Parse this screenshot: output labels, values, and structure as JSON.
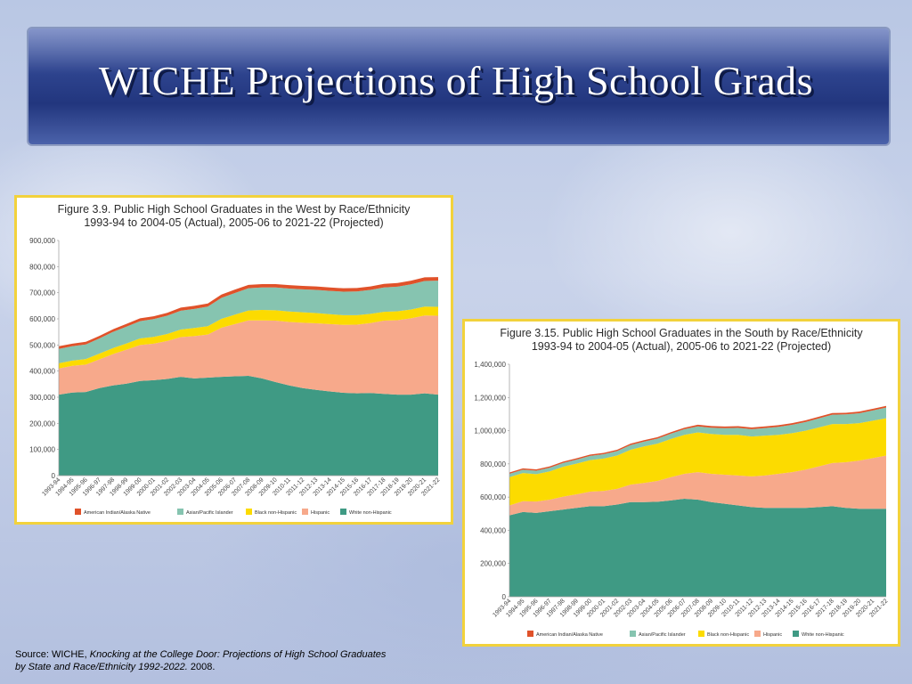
{
  "page": {
    "title": "WICHE Projections of High School Grads",
    "source_prefix": "Source: WICHE, ",
    "source_title": "Knocking at the College Door: Projections of High School Graduates by State and Race/Ethnicity 1992-2022.",
    "source_suffix": " 2008."
  },
  "colors": {
    "american_indian": "#e0522a",
    "asian": "#86c4b0",
    "black": "#fcdb00",
    "hispanic": "#f7a98b",
    "white": "#3f9a84"
  },
  "legend": [
    {
      "key": "american_indian",
      "label": "American Indian/Alaska Native"
    },
    {
      "key": "asian",
      "label": "Asian/Pacific Islander"
    },
    {
      "key": "black",
      "label": "Black non-Hispanic"
    },
    {
      "key": "hispanic",
      "label": "Hispanic"
    },
    {
      "key": "white",
      "label": "White non-Hispanic"
    }
  ],
  "chart_data": [
    {
      "type": "area",
      "title_line1": "Figure 3.9.  Public High School Graduates in the West by Race/Ethnicity",
      "title_line2": "1993-94 to 2004-05 (Actual), 2005-06 to 2021-22 (Projected)",
      "stacked": true,
      "ylim": [
        0,
        900000
      ],
      "yticks": [
        "0",
        "100,000",
        "200,000",
        "300,000",
        "400,000",
        "500,000",
        "600,000",
        "700,000",
        "800,000",
        "900,000"
      ],
      "categories": [
        "1993-94",
        "1994-95",
        "1995-96",
        "1996-97",
        "1997-98",
        "1998-99",
        "1999-00",
        "2000-01",
        "2001-02",
        "2002-03",
        "2003-04",
        "2004-05",
        "2005-06",
        "2006-07",
        "2007-08",
        "2008-09",
        "2009-10",
        "2010-11",
        "2011-12",
        "2012-13",
        "2013-14",
        "2014-15",
        "2015-16",
        "2016-17",
        "2017-18",
        "2018-19",
        "2019-20",
        "2020-21",
        "2021-22"
      ],
      "series": [
        {
          "name": "White non-Hispanic",
          "key": "white",
          "values": [
            310000,
            318000,
            320000,
            335000,
            345000,
            352000,
            362000,
            365000,
            370000,
            378000,
            372000,
            375000,
            378000,
            380000,
            382000,
            372000,
            358000,
            345000,
            335000,
            328000,
            322000,
            317000,
            315000,
            316000,
            313000,
            310000,
            310000,
            315000,
            310000
          ]
        },
        {
          "name": "Hispanic",
          "key": "hispanic",
          "values": [
            100000,
            102000,
            105000,
            110000,
            120000,
            130000,
            138000,
            140000,
            145000,
            152000,
            162000,
            165000,
            188000,
            200000,
            212000,
            222000,
            235000,
            243000,
            250000,
            255000,
            258000,
            260000,
            263000,
            268000,
            280000,
            285000,
            292000,
            298000,
            302000
          ]
        },
        {
          "name": "Black non-Hispanic",
          "key": "black",
          "values": [
            20000,
            20000,
            21000,
            22000,
            23000,
            24000,
            25000,
            26000,
            27000,
            29000,
            31000,
            32000,
            34000,
            36000,
            38000,
            40000,
            40000,
            40000,
            40000,
            39000,
            38000,
            37000,
            36000,
            35000,
            34000,
            34000,
            34000,
            34000,
            34000
          ]
        },
        {
          "name": "Asian/Pacific Islander",
          "key": "asian",
          "values": [
            55000,
            55000,
            56000,
            58000,
            62000,
            64000,
            66000,
            68000,
            70000,
            72000,
            73000,
            75000,
            80000,
            83000,
            85000,
            86000,
            87000,
            88000,
            88000,
            89000,
            89000,
            90000,
            91000,
            92000,
            93000,
            94000,
            96000,
            98000,
            100000
          ]
        },
        {
          "name": "American Indian/Alaska Native",
          "key": "american_indian",
          "values": [
            10000,
            10000,
            10000,
            10000,
            10000,
            11000,
            11000,
            11000,
            11000,
            12000,
            12000,
            12000,
            13000,
            13000,
            13000,
            13000,
            13000,
            13000,
            13000,
            13000,
            13000,
            13000,
            13000,
            13000,
            14000,
            14000,
            14000,
            14000,
            14000
          ]
        }
      ]
    },
    {
      "type": "area",
      "title_line1": "Figure 3.15.  Public High School Graduates in the South by Race/Ethnicity",
      "title_line2": "1993-94 to 2004-05 (Actual), 2005-06 to 2021-22 (Projected)",
      "stacked": true,
      "ylim": [
        0,
        1400000
      ],
      "yticks": [
        "0",
        "200,000",
        "400,000",
        "600,000",
        "800,000",
        "1,000,000",
        "1,200,000",
        "1,400,000"
      ],
      "categories": [
        "1993-94",
        "1994-95",
        "1995-96",
        "1996-97",
        "1997-98",
        "1998-99",
        "1999-00",
        "2000-01",
        "2001-02",
        "2002-03",
        "2003-04",
        "2004-05",
        "2005-06",
        "2006-07",
        "2007-08",
        "2008-09",
        "2009-10",
        "2010-11",
        "2011-12",
        "2012-13",
        "2013-14",
        "2014-15",
        "2015-16",
        "2016-17",
        "2017-18",
        "2018-19",
        "2019-20",
        "2020-21",
        "2021-22"
      ],
      "series": [
        {
          "name": "White non-Hispanic",
          "key": "white",
          "values": [
            490000,
            510000,
            505000,
            515000,
            525000,
            535000,
            545000,
            545000,
            555000,
            570000,
            570000,
            572000,
            580000,
            590000,
            585000,
            570000,
            560000,
            550000,
            540000,
            535000,
            535000,
            535000,
            535000,
            540000,
            545000,
            535000,
            530000,
            530000,
            530000
          ]
        },
        {
          "name": "Hispanic",
          "key": "hispanic",
          "values": [
            60000,
            65000,
            68000,
            70000,
            78000,
            82000,
            88000,
            92000,
            95000,
            105000,
            115000,
            125000,
            140000,
            150000,
            165000,
            170000,
            175000,
            180000,
            185000,
            195000,
            205000,
            215000,
            230000,
            245000,
            260000,
            275000,
            290000,
            305000,
            320000
          ]
        },
        {
          "name": "Black non-Hispanic",
          "key": "black",
          "values": [
            170000,
            170000,
            165000,
            170000,
            180000,
            185000,
            190000,
            195000,
            200000,
            210000,
            220000,
            225000,
            230000,
            235000,
            240000,
            240000,
            240000,
            245000,
            240000,
            240000,
            235000,
            235000,
            235000,
            235000,
            235000,
            230000,
            225000,
            225000,
            225000
          ]
        },
        {
          "name": "Asian/Pacific Islander",
          "key": "asian",
          "values": [
            20000,
            20000,
            21000,
            22000,
            23000,
            24000,
            25000,
            26000,
            27000,
            28000,
            29000,
            30000,
            32000,
            34000,
            36000,
            38000,
            40000,
            42000,
            44000,
            46000,
            48000,
            50000,
            52000,
            54000,
            56000,
            58000,
            60000,
            62000,
            64000
          ]
        },
        {
          "name": "American Indian/Alaska Native",
          "key": "american_indian",
          "values": [
            8000,
            8000,
            8000,
            8000,
            8000,
            8000,
            8000,
            8000,
            8000,
            9000,
            9000,
            9000,
            9000,
            9000,
            10000,
            10000,
            10000,
            10000,
            10000,
            10000,
            10000,
            10000,
            10000,
            10000,
            10000,
            10000,
            10000,
            10000,
            10000
          ]
        }
      ]
    }
  ]
}
